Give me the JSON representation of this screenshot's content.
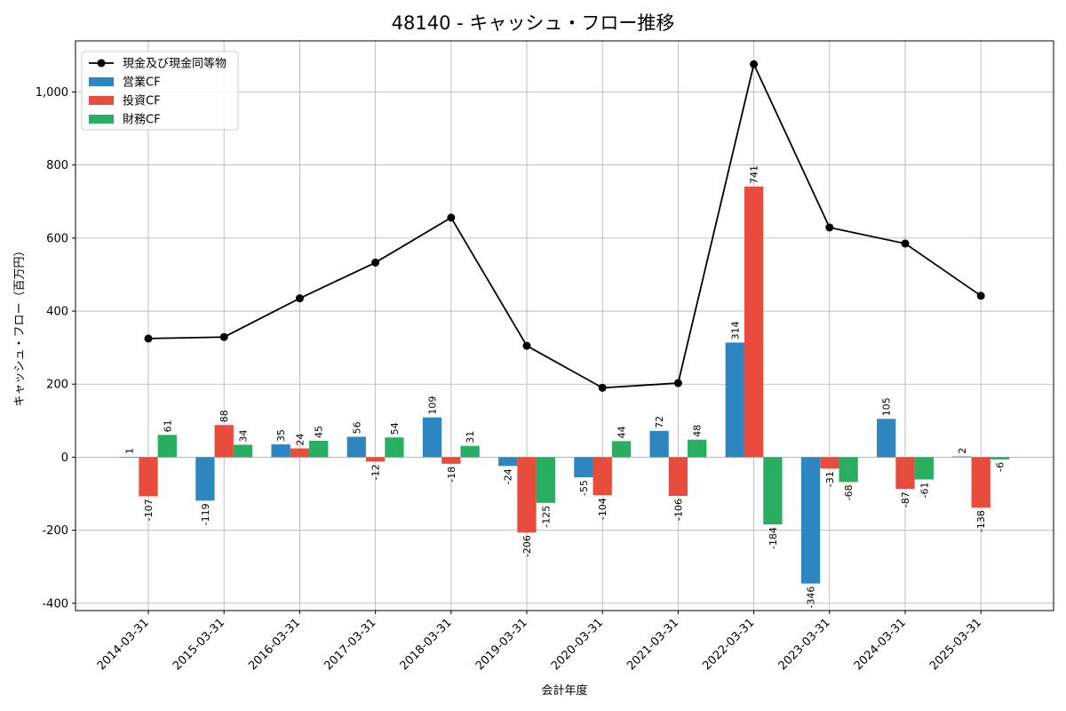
{
  "chart_data": {
    "type": "bar",
    "title": "48140 - キャッシュ・フロー推移",
    "xlabel": "会計年度",
    "ylabel": "キャッシュ・フロー（百万円）",
    "categories": [
      "2014-03-31",
      "2015-03-31",
      "2016-03-31",
      "2017-03-31",
      "2018-03-31",
      "2019-03-31",
      "2020-03-31",
      "2021-03-31",
      "2022-03-31",
      "2023-03-31",
      "2024-03-31",
      "2025-03-31"
    ],
    "ylim": [
      -420,
      1140
    ],
    "yticks": [
      -400,
      -200,
      0,
      200,
      400,
      600,
      800,
      1000
    ],
    "ytick_labels": [
      "-400",
      "-200",
      "0",
      "200",
      "400",
      "600",
      "800",
      "1,000"
    ],
    "grid": true,
    "legend_position": "top-left",
    "series": [
      {
        "name": "営業CF",
        "kind": "bar",
        "color": "#2e86c1",
        "values": [
          1,
          -119,
          35,
          56,
          109,
          -24,
          -55,
          72,
          314,
          -346,
          105,
          2
        ]
      },
      {
        "name": "投資CF",
        "kind": "bar",
        "color": "#e74c3c",
        "values": [
          -107,
          88,
          24,
          -12,
          -18,
          -206,
          -104,
          -106,
          741,
          -31,
          -87,
          -138
        ]
      },
      {
        "name": "財務CF",
        "kind": "bar",
        "color": "#27ae60",
        "values": [
          61,
          34,
          45,
          54,
          31,
          -125,
          44,
          48,
          -184,
          -68,
          -61,
          -6
        ]
      },
      {
        "name": "現金及び現金同等物",
        "kind": "line",
        "color": "#000000",
        "values": [
          325,
          329,
          435,
          533,
          656,
          305,
          190,
          203,
          1076,
          629,
          585,
          442
        ]
      }
    ]
  }
}
